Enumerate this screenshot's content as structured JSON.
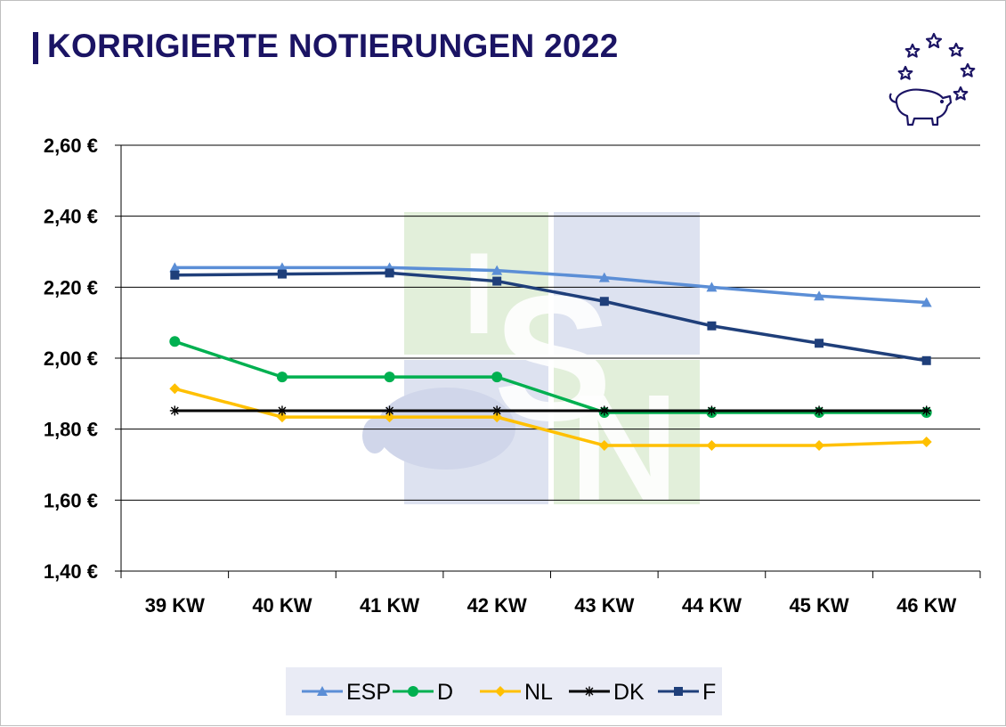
{
  "title": "KORRIGIERTE NOTIERUNGEN 2022",
  "colors": {
    "title": "#1b1464",
    "ESP": "#5b8ed6",
    "D": "#00b050",
    "NL": "#ffc000",
    "DK": "#000000",
    "F": "#1f3f7a",
    "watermark_green": "#e2efda",
    "watermark_blue": "#dde2f0"
  },
  "watermark": {
    "letters": [
      "I",
      "S",
      "N"
    ]
  },
  "chart_data": {
    "type": "line",
    "categories": [
      "39 KW",
      "40 KW",
      "41 KW",
      "42 KW",
      "43 KW",
      "44 KW",
      "45 KW",
      "46 KW"
    ],
    "ylim": [
      1.4,
      2.6
    ],
    "yticks": [
      2.6,
      2.4,
      2.2,
      2.0,
      1.8,
      1.6,
      1.4
    ],
    "ytick_labels": [
      "2,60 €",
      "2,40 €",
      "2,20 €",
      "2,00 €",
      "1,80 €",
      "1,60 €",
      "1,40 €"
    ],
    "grid": true,
    "legend_position": "bottom",
    "series": [
      {
        "name": "ESP",
        "marker": "triangle",
        "values": [
          2.255,
          2.255,
          2.255,
          2.247,
          2.227,
          2.2,
          2.175,
          2.157
        ]
      },
      {
        "name": "D",
        "marker": "circle",
        "values": [
          2.047,
          1.947,
          1.947,
          1.947,
          1.847,
          1.847,
          1.847,
          1.847
        ]
      },
      {
        "name": "NL",
        "marker": "diamond",
        "values": [
          1.914,
          1.834,
          1.834,
          1.834,
          1.754,
          1.754,
          1.754,
          1.764
        ]
      },
      {
        "name": "DK",
        "marker": "star",
        "values": [
          1.852,
          1.852,
          1.852,
          1.852,
          1.852,
          1.852,
          1.852,
          1.852
        ]
      },
      {
        "name": "F",
        "marker": "square",
        "values": [
          2.234,
          2.237,
          2.24,
          2.217,
          2.16,
          2.091,
          2.042,
          1.993
        ]
      }
    ]
  }
}
